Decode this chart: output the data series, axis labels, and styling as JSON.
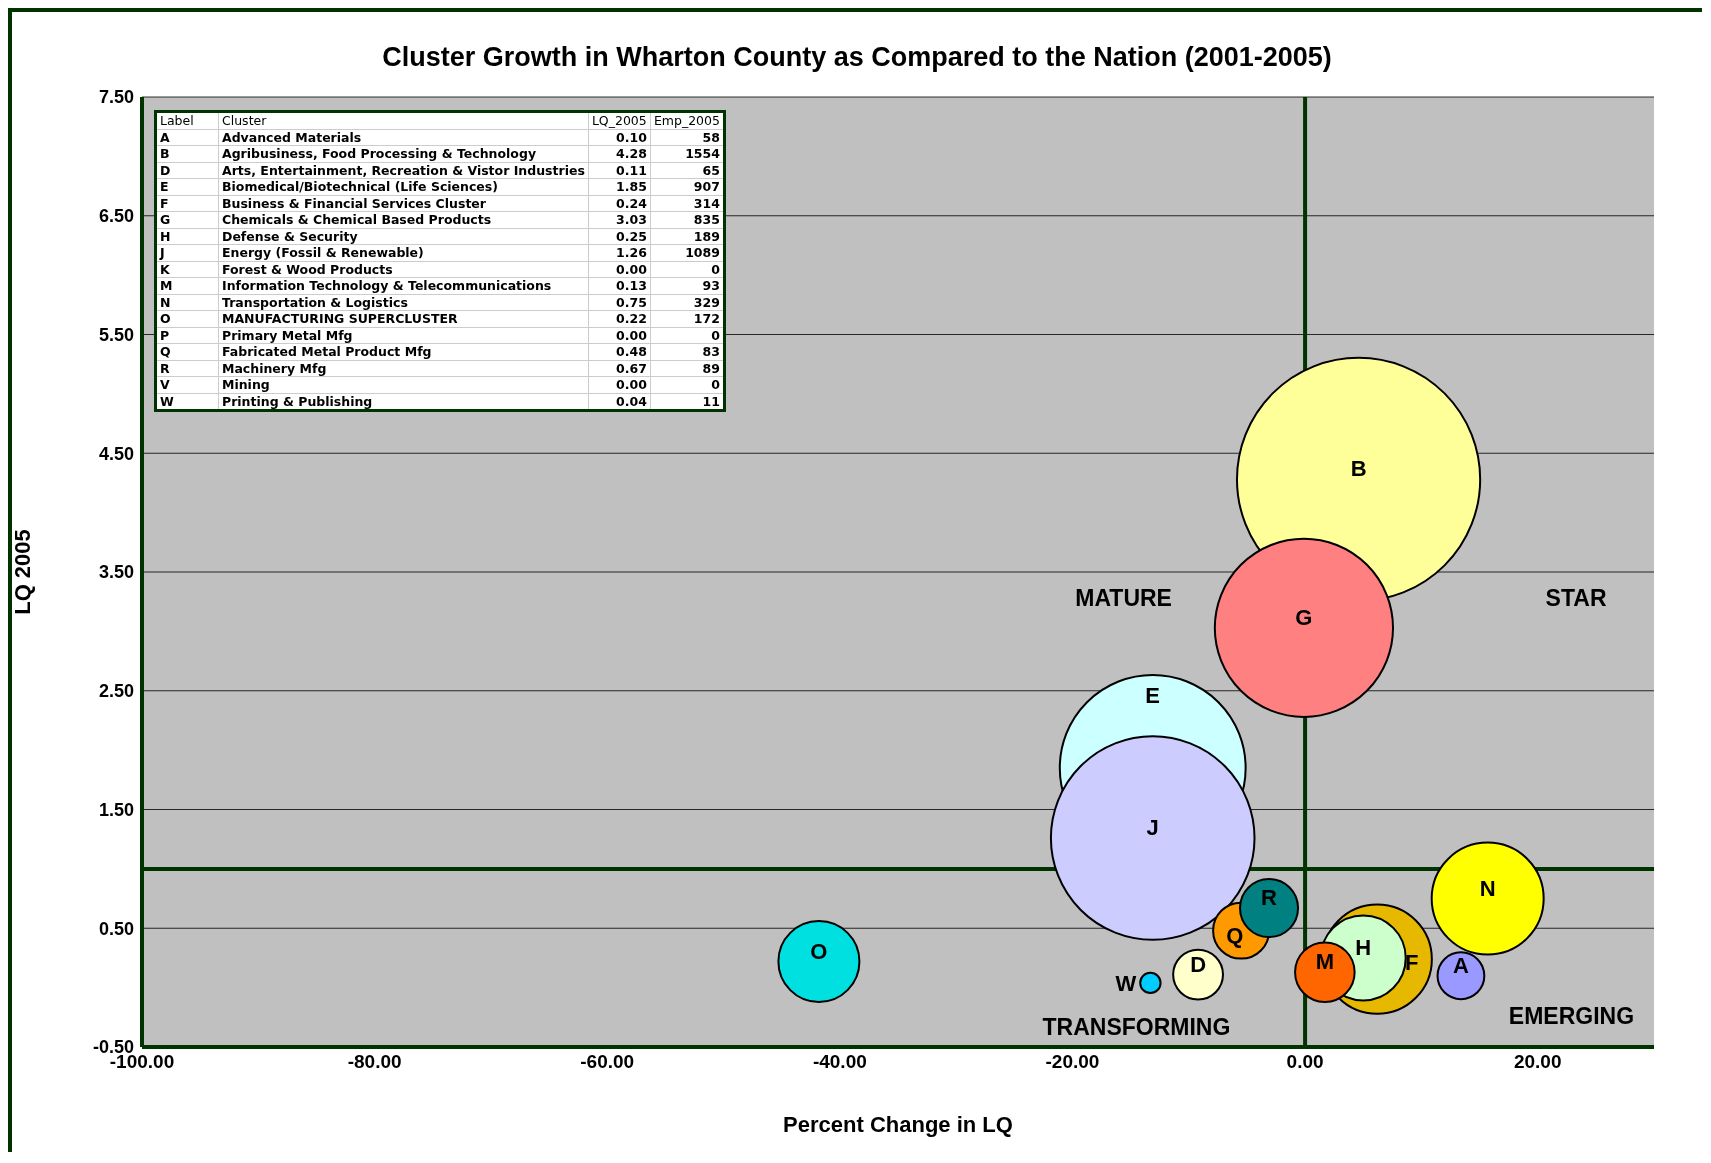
{
  "chart_data": {
    "type": "bubble",
    "title": "Cluster Growth in Wharton County as Compared to the Nation (2001-2005)",
    "xlabel": "Percent Change in LQ",
    "ylabel": "LQ 2005",
    "xlim": [
      -100,
      30
    ],
    "xticks": [
      {
        "value": -100,
        "label": "-100.00"
      },
      {
        "value": -80,
        "label": "-80.00"
      },
      {
        "value": -60,
        "label": "-60.00"
      },
      {
        "value": -40,
        "label": "-40.00"
      },
      {
        "value": -20,
        "label": "-20.00"
      },
      {
        "value": 0,
        "label": "0.00"
      },
      {
        "value": 20,
        "label": "20.00"
      }
    ],
    "ylim": [
      -0.5,
      7.5
    ],
    "yticks": [
      {
        "value": -0.5,
        "label": "-0.50"
      },
      {
        "value": 0.5,
        "label": "0.50"
      },
      {
        "value": 1.5,
        "label": "1.50"
      },
      {
        "value": 2.5,
        "label": "2.50"
      },
      {
        "value": 3.5,
        "label": "3.50"
      },
      {
        "value": 4.5,
        "label": "4.50"
      },
      {
        "value": 5.5,
        "label": "5.50"
      },
      {
        "value": 6.5,
        "label": "6.50"
      },
      {
        "value": 7.5,
        "label": "7.50"
      }
    ],
    "grid": "y",
    "legend": false,
    "ref_lines": [
      {
        "axis": "x",
        "value": 0,
        "color": "#003300"
      },
      {
        "axis": "y",
        "value": 1,
        "color": "#003300"
      }
    ],
    "series": [
      {
        "name": "B",
        "color": "#ffff99",
        "x": [
          4.6
        ],
        "values": [
          4.28
        ],
        "sizes": [
          1
        ]
      },
      {
        "name": "G",
        "color": "#ff8080",
        "x": [
          -0.1
        ],
        "values": [
          3.03
        ],
        "sizes": [
          0.537
        ]
      },
      {
        "name": "E",
        "color": "#ccffff",
        "x": [
          -13.1
        ],
        "values": [
          1.85
        ],
        "sizes": [
          0.584
        ]
      },
      {
        "name": "J",
        "color": "#ccccff",
        "x": [
          -13.1
        ],
        "values": [
          1.26
        ],
        "sizes": [
          0.701
        ]
      },
      {
        "name": "O",
        "color": "#00e0e0",
        "x": [
          -41.8
        ],
        "values": [
          0.22
        ],
        "sizes": [
          0.111
        ]
      },
      {
        "name": "W",
        "color": "#00ccff",
        "x": [
          -13.3
        ],
        "values": [
          0.04
        ],
        "sizes": [
          0.007
        ]
      },
      {
        "name": "D",
        "color": "#ffffcc",
        "x": [
          -9.2
        ],
        "values": [
          0.11
        ],
        "sizes": [
          0.042
        ]
      },
      {
        "name": "Q",
        "color": "#ff9900",
        "x": [
          -5.5
        ],
        "values": [
          0.48
        ],
        "sizes": [
          0.053
        ]
      },
      {
        "name": "R",
        "color": "#008080",
        "x": [
          -3.1
        ],
        "values": [
          0.67
        ],
        "sizes": [
          0.057
        ]
      },
      {
        "name": "F",
        "color": "#e6b800",
        "x": [
          6.2
        ],
        "values": [
          0.24
        ],
        "sizes": [
          0.202
        ]
      },
      {
        "name": "H",
        "color": "#ccffcc",
        "x": [
          5.0
        ],
        "values": [
          0.25
        ],
        "sizes": [
          0.122
        ]
      },
      {
        "name": "M",
        "color": "#ff6600",
        "x": [
          1.7
        ],
        "values": [
          0.13
        ],
        "sizes": [
          0.06
        ]
      },
      {
        "name": "A",
        "color": "#9999ff",
        "x": [
          13.4
        ],
        "values": [
          0.1
        ],
        "sizes": [
          0.037
        ]
      },
      {
        "name": "N",
        "color": "#ffff00",
        "x": [
          15.7
        ],
        "values": [
          0.75
        ],
        "sizes": [
          0.212
        ]
      }
    ],
    "annotations": [
      "MATURE",
      "STAR",
      "TRANSFORMING",
      "EMERGING",
      "Label",
      "Cluster",
      "LQ_2005",
      "Emp_2005",
      "A",
      "Advanced Materials",
      "0.10",
      "58",
      "B",
      "Agribusiness, Food Processing & Technology",
      "4.28",
      "1554",
      "D",
      "Arts, Entertainment, Recreation & Vistor Industries",
      "0.11",
      "65",
      "E",
      "Biomedical/Biotechnical (Life Sciences)",
      "1.85",
      "907",
      "F",
      "Business & Financial Services Cluster",
      "0.24",
      "314",
      "G",
      "Chemicals & Chemical Based Products",
      "3.03",
      "835",
      "H",
      "Defense & Security",
      "0.25",
      "189",
      "J",
      "Energy (Fossil & Renewable)",
      "1.26",
      "1089",
      "K",
      "Forest & Wood Products",
      "0.00",
      "0",
      "M",
      "Information Technology & Telecommunications",
      "0.13",
      "93",
      "N",
      "Transportation & Logistics",
      "0.75",
      "329",
      "O",
      "MANUFACTURING SUPERCLUSTER",
      "0.22",
      "172",
      "P",
      "Primary Metal Mfg",
      "0.00",
      "0",
      "Q",
      "Fabricated Metal Product Mfg",
      "0.48",
      "83",
      "R",
      "Machinery Mfg",
      "0.67",
      "89",
      "V",
      "Mining",
      "0.00",
      "0",
      "W",
      "Printing & Publishing",
      "0.04",
      "11"
    ]
  }
}
